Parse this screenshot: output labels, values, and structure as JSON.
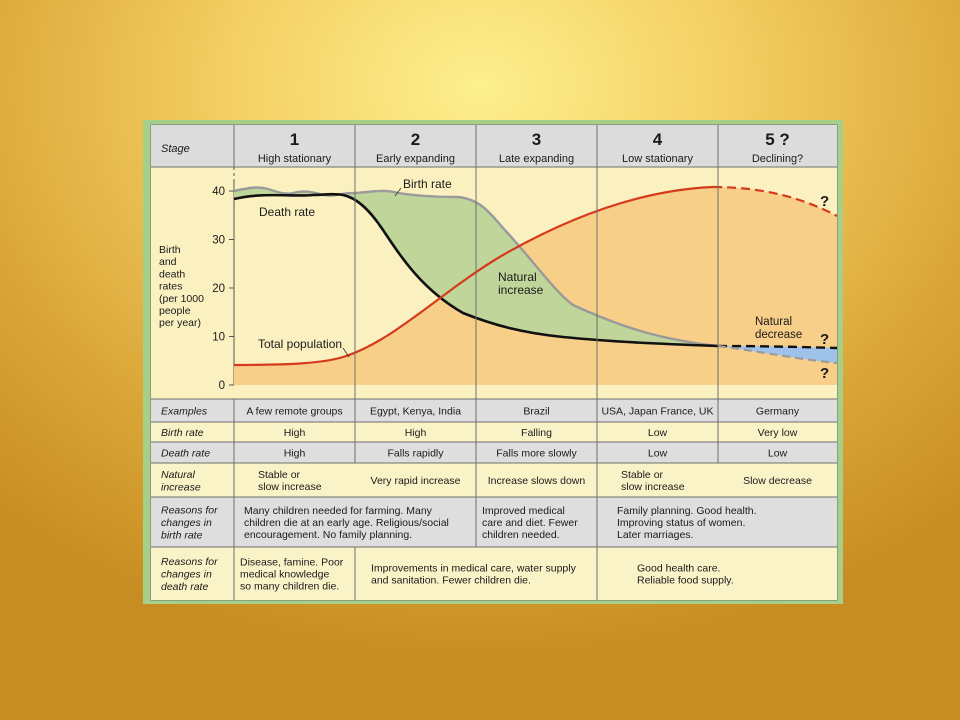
{
  "colors": {
    "frame": "#a6d08a",
    "header_bg": "#dcdcdc",
    "grey_row": "#dedede",
    "cream_row": "#fbf3c8",
    "graph_bg": "#fbf1c0",
    "population_area": "#f8cf88",
    "natural_increase": "#bfd59a",
    "natural_decrease": "#9fc2ea",
    "birth_line": "#9a9a9a",
    "death_line": "#111111",
    "population_line": "#d63a1e"
  },
  "header": {
    "stage_label": "Stage"
  },
  "stages": [
    {
      "num": "1",
      "name": "High stationary"
    },
    {
      "num": "2",
      "name": "Early expanding"
    },
    {
      "num": "3",
      "name": "Late expanding"
    },
    {
      "num": "4",
      "name": "Low stationary"
    },
    {
      "num": "5 ?",
      "name": "Declining?"
    }
  ],
  "graph": {
    "y_axis_label": [
      "Birth",
      "and",
      "death",
      "rates",
      "(per 1000",
      "people",
      "per year)"
    ],
    "y_ticks": [
      "40",
      "30",
      "20",
      "10",
      "0"
    ],
    "labels": {
      "birth_rate": "Birth rate",
      "death_rate": "Death rate",
      "natural_increase": [
        "Natural",
        "increase"
      ],
      "natural_decrease": [
        "Natural",
        "decrease"
      ],
      "total_population": "Total population",
      "question": "?"
    }
  },
  "rows": [
    {
      "label": [
        "Examples"
      ],
      "cells": [
        [
          "A few remote groups"
        ],
        [
          "Egypt, Kenya, India"
        ],
        [
          "Brazil"
        ],
        [
          "USA, Japan France, UK"
        ],
        [
          "Germany"
        ]
      ]
    },
    {
      "label": [
        "Birth rate"
      ],
      "cells": [
        [
          "High"
        ],
        [
          "High"
        ],
        [
          "Falling"
        ],
        [
          "Low"
        ],
        [
          "Very low"
        ]
      ]
    },
    {
      "label": [
        "Death rate"
      ],
      "cells": [
        [
          "High"
        ],
        [
          "Falls rapidly"
        ],
        [
          "Falls more slowly"
        ],
        [
          "Low"
        ],
        [
          "Low"
        ]
      ]
    },
    {
      "label": [
        "Natural",
        "increase"
      ],
      "cells": [
        [
          "Stable or",
          "slow increase"
        ],
        [
          "Very rapid increase"
        ],
        [
          "Increase slows down"
        ],
        [
          "Stable or",
          "slow increase"
        ],
        [
          "Slow decrease"
        ]
      ]
    },
    {
      "label": [
        "Reasons for",
        "changes in",
        "birth rate"
      ],
      "cells": [
        [
          "Many children needed for farming. Many",
          "children die at an early age. Religious/social",
          "encouragement. No family planning."
        ],
        [
          "Improved medical",
          "care and diet. Fewer",
          "children needed."
        ],
        [
          "Family planning. Good health.",
          "Improving status of women.",
          "Later marriages."
        ]
      ]
    },
    {
      "label": [
        "Reasons for",
        "changes in",
        "death rate"
      ],
      "cells": [
        [
          "Disease, famine. Poor",
          "medical knowledge",
          "so many children die."
        ],
        [
          "Improvements in medical care, water supply",
          "and sanitation. Fewer children die."
        ],
        [
          "Good health care.",
          "Reliable food supply."
        ]
      ]
    }
  ]
}
